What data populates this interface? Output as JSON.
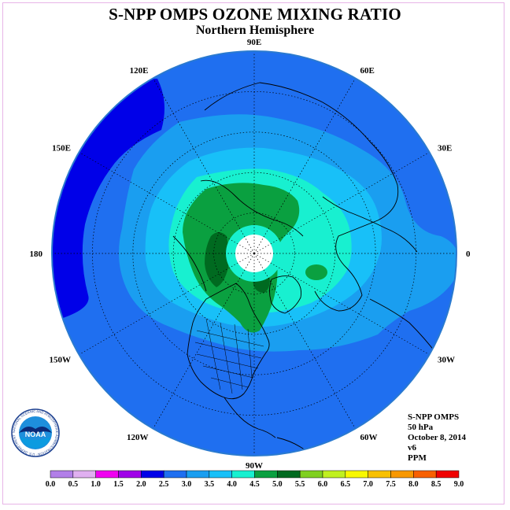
{
  "title": "S-NPP OMPS OZONE MIXING RATIO",
  "subtitle": "Northern Hemisphere",
  "longitude_labels": [
    {
      "text": "90E",
      "lon": 90
    },
    {
      "text": "60E",
      "lon": 60
    },
    {
      "text": "30E",
      "lon": 30
    },
    {
      "text": "0",
      "lon": 0
    },
    {
      "text": "30W",
      "lon": -30
    },
    {
      "text": "60W",
      "lon": -60
    },
    {
      "text": "90W",
      "lon": -90
    },
    {
      "text": "120W",
      "lon": -120
    },
    {
      "text": "150W",
      "lon": -150
    },
    {
      "text": "180",
      "lon": 180
    },
    {
      "text": "150E",
      "lon": 150
    },
    {
      "text": "120E",
      "lon": 120
    }
  ],
  "info": {
    "instrument": "S-NPP OMPS",
    "level": "50 hPa",
    "date": "October 8, 2014",
    "version": "v6",
    "units": "PPM"
  },
  "logo": {
    "text": "NOAA",
    "ring_text": "NATIONAL OCEANIC AND ATMOSPHERIC ADMINISTRATION · U.S. DEPARTMENT OF COMMERCE"
  },
  "colorbar": {
    "ticks": [
      "0.0",
      "0.5",
      "1.0",
      "1.5",
      "2.0",
      "2.5",
      "3.0",
      "3.5",
      "4.0",
      "4.5",
      "5.0",
      "5.5",
      "6.0",
      "6.5",
      "7.0",
      "7.5",
      "8.0",
      "8.5",
      "9.0"
    ],
    "colors": [
      "#b27fe8",
      "#e0b0f0",
      "#f000f0",
      "#a000e8",
      "#0000e8",
      "#1f6ff0",
      "#1a9ef0",
      "#18c0f8",
      "#18f0d0",
      "#0aa040",
      "#006a20",
      "#80d020",
      "#c0f020",
      "#f8f800",
      "#f8c000",
      "#f89800",
      "#f86000",
      "#f00000",
      "#905030"
    ]
  },
  "ozone_field": {
    "units": "PPM",
    "levels_shown": [
      {
        "range": "1.5-2.0",
        "color": "#0000e8",
        "region": "Pacific near date line"
      },
      {
        "range": "2.0-2.5",
        "color": "#1f6ff0",
        "region": "outer ring"
      },
      {
        "range": "2.5-3.0",
        "color": "#1a9ef0",
        "region": "mid ring"
      },
      {
        "range": "3.0-3.5",
        "color": "#18c0f8",
        "region": "inner ring"
      },
      {
        "range": "3.5-4.0",
        "color": "#18f0d0",
        "region": "polar ring"
      },
      {
        "range": "4.0-4.5",
        "color": "#0aa040",
        "region": "polar maximum"
      },
      {
        "range": "4.5-5.0",
        "color": "#006a20",
        "region": "local peaks"
      }
    ]
  }
}
